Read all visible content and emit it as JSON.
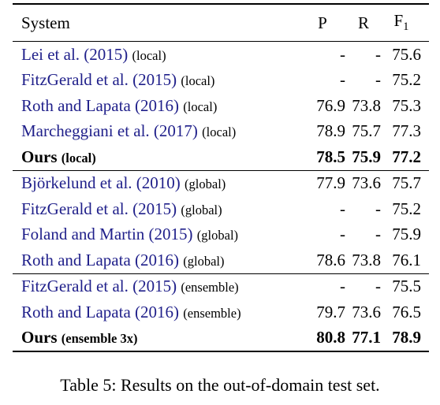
{
  "header": {
    "system": "System",
    "p": "P",
    "r": "R",
    "f1_base": "F",
    "f1_sub": "1"
  },
  "groups": [
    {
      "rows": [
        {
          "cite": "Lei et al. (2015)",
          "scope": "(local)",
          "p": "-",
          "r": "-",
          "f1": "75.6"
        },
        {
          "cite": "FitzGerald et al. (2015)",
          "scope": "(local)",
          "p": "-",
          "r": "-",
          "f1": "75.2"
        },
        {
          "cite": "Roth and Lapata (2016)",
          "scope": "(local)",
          "p": "76.9",
          "r": "73.8",
          "f1": "75.3"
        },
        {
          "cite": "Marcheggiani et al. (2017)",
          "scope": "(local)",
          "p": "78.9",
          "r": "75.7",
          "f1": "77.3"
        },
        {
          "cite": "Ours",
          "scope": "(local)",
          "p": "78.5",
          "r": "75.9",
          "f1": "77.2",
          "bold": true
        }
      ]
    },
    {
      "rows": [
        {
          "cite": "Björkelund et al. (2010)",
          "scope": "(global)",
          "p": "77.9",
          "r": "73.6",
          "f1": "75.7"
        },
        {
          "cite": "FitzGerald et al. (2015)",
          "scope": "(global)",
          "p": "-",
          "r": "-",
          "f1": "75.2"
        },
        {
          "cite": "Foland and Martin (2015)",
          "scope": "(global)",
          "p": "-",
          "r": "-",
          "f1": "75.9"
        },
        {
          "cite": "Roth and Lapata (2016)",
          "scope": "(global)",
          "p": "78.6",
          "r": "73.8",
          "f1": "76.1"
        }
      ]
    },
    {
      "rows": [
        {
          "cite": "FitzGerald et al. (2015)",
          "scope": "(ensemble)",
          "p": "-",
          "r": "-",
          "f1": "75.5"
        },
        {
          "cite": "Roth and Lapata (2016)",
          "scope": "(ensemble)",
          "p": "79.7",
          "r": "73.6",
          "f1": "76.5"
        },
        {
          "cite": "Ours",
          "scope": "(ensemble 3x)",
          "p": "80.8",
          "r": "77.1",
          "f1": "78.9",
          "bold": true
        }
      ]
    }
  ],
  "caption": "Table 5:  Results on the out-of-domain test set.",
  "colors": {
    "citation": "#1f1f8a"
  }
}
